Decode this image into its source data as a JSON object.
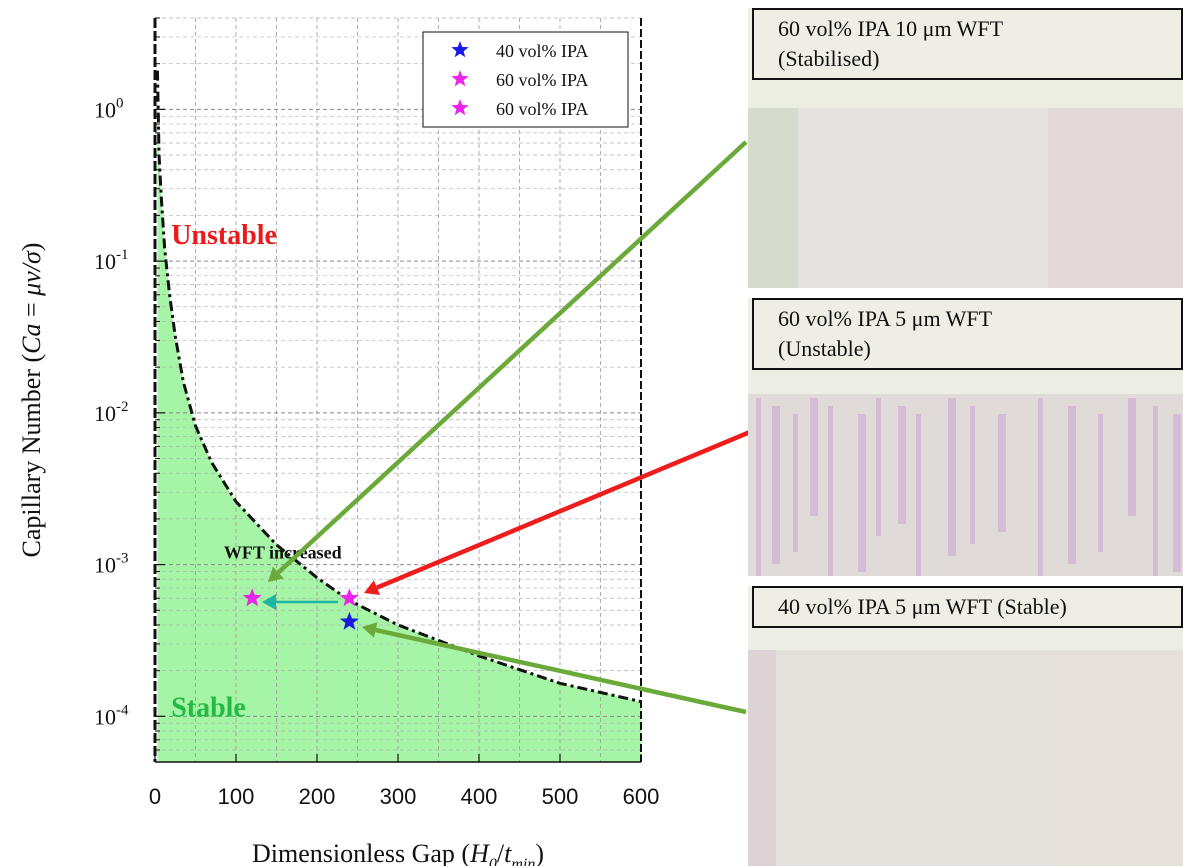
{
  "chart_data": {
    "type": "scatter",
    "xlabel": "Dimensionless Gap (H0/tmin)",
    "xlabel_parts": {
      "main": "Dimensionless Gap (",
      "var1": "H",
      "sub1": "0",
      "slash": "/",
      "var2": "t",
      "sub2": "min",
      "close": ")"
    },
    "ylabel": "Capillary Number (Ca = μv/σ)",
    "ylabel_parts": {
      "main": "Capillary Number (",
      "ca": "Ca",
      "eq": " = ",
      "mu": "μv/σ",
      "close": ")"
    },
    "xlim": [
      0,
      600
    ],
    "ylim": [
      5e-05,
      4.0
    ],
    "yscale": "log",
    "grid": true,
    "x_ticks": [
      {
        "v": 0,
        "label": "0"
      },
      {
        "v": 100,
        "label": "100"
      },
      {
        "v": 200,
        "label": "200"
      },
      {
        "v": 300,
        "label": "300"
      },
      {
        "v": 400,
        "label": "400"
      },
      {
        "v": 500,
        "label": "500"
      },
      {
        "v": 600,
        "label": "600"
      }
    ],
    "y_ticks": [
      {
        "v": 0.0001,
        "base": "10",
        "exp": "-4"
      },
      {
        "v": 0.001,
        "base": "10",
        "exp": "-3"
      },
      {
        "v": 0.01,
        "base": "10",
        "exp": "-2"
      },
      {
        "v": 0.1,
        "base": "10",
        "exp": "-1"
      },
      {
        "v": 1,
        "base": "10",
        "exp": "0"
      }
    ],
    "boundary_curve": {
      "x": [
        3,
        5,
        8,
        12,
        18,
        25,
        35,
        50,
        70,
        100,
        150,
        200,
        240,
        300,
        400,
        500,
        600
      ],
      "y": [
        1.8,
        0.5,
        0.25,
        0.12,
        0.06,
        0.032,
        0.016,
        0.0082,
        0.0047,
        0.0026,
        0.00135,
        0.00082,
        0.00058,
        0.0004,
        0.00025,
        0.000165,
        0.000125
      ]
    },
    "series": [
      {
        "name": "40 vol% IPA",
        "color": "#1a1ae6",
        "points": [
          {
            "x": 240,
            "y": 0.00042
          }
        ]
      },
      {
        "name": "60 vol% IPA",
        "color": "#ee22ee",
        "points": [
          {
            "x": 240,
            "y": 0.0006
          }
        ]
      },
      {
        "name": "60 vol% IPA",
        "color": "#ee22ee",
        "points": [
          {
            "x": 120,
            "y": 0.0006
          }
        ]
      }
    ],
    "legend": {
      "placement": "top-right"
    },
    "region_labels": [
      {
        "text": "Unstable",
        "color": "#e81c1c",
        "x": 20,
        "y": 0.13
      },
      {
        "text": "Stable",
        "color": "#22bb44",
        "x": 20,
        "y": 0.0001
      }
    ],
    "annotation": {
      "text": "WFT increased",
      "x": 85,
      "y": 0.0012
    },
    "fill_color": "#a6f5a6"
  },
  "panels": [
    {
      "line1": "60 vol% IPA 10 μm WFT",
      "line2": "(Stabilised)"
    },
    {
      "line1": "60 vol% IPA 5 μm WFT",
      "line2": "(Unstable)"
    },
    {
      "line1": "40 vol% IPA 5 μm WFT (Stable)",
      "line2": ""
    }
  ],
  "colors": {
    "arrow_green": "#6aaa3a",
    "arrow_red": "#ee1c1c",
    "arrow_teal": "#1fb5a0"
  }
}
